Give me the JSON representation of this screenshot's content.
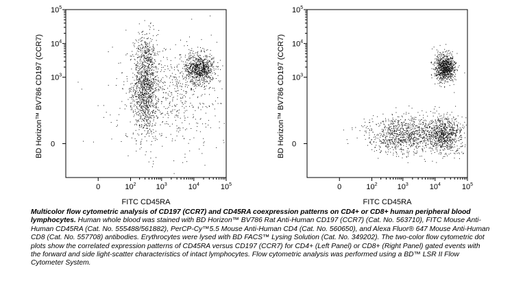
{
  "chart_data": [
    {
      "type": "scatter",
      "panel": "left",
      "title": "",
      "xlabel": "FITC CD45RA",
      "ylabel": "BD Horizon™ BV786 CD197 (CCR7)",
      "x_scale": "biexponential (log-like)",
      "y_scale": "biexponential (log-like)",
      "xlim": [
        -100,
        100000
      ],
      "ylim": [
        -100,
        100000
      ],
      "x_ticks": [
        {
          "value": 0,
          "label": "0"
        },
        {
          "value": 100,
          "label": "10",
          "exp": "2"
        },
        {
          "value": 1000,
          "label": "10",
          "exp": "3"
        },
        {
          "value": 10000,
          "label": "10",
          "exp": "4"
        },
        {
          "value": 100000,
          "label": "10",
          "exp": "5"
        }
      ],
      "y_ticks": [
        {
          "value": 0,
          "label": "0"
        },
        {
          "value": 1000,
          "label": "10",
          "exp": "3"
        },
        {
          "value": 10000,
          "label": "10",
          "exp": "4"
        },
        {
          "value": 100000,
          "label": "10",
          "exp": "5"
        }
      ],
      "populations": [
        {
          "description": "CD45RA low, CCR7 spread",
          "cx": 300,
          "cy": 600,
          "weight": 0.45
        },
        {
          "description": "CD45RA high, CCR7 high",
          "cx": 15000,
          "cy": 1800,
          "weight": 0.3
        },
        {
          "description": "scattered background",
          "cx": 2000,
          "cy": 300,
          "weight": 0.25
        }
      ],
      "grid": false,
      "legend": "none"
    },
    {
      "type": "scatter",
      "panel": "right",
      "title": "",
      "xlabel": "FITC CD45RA",
      "ylabel": "BD Horizon™ BV786 CD197 (CCR7)",
      "x_scale": "biexponential (log-like)",
      "y_scale": "biexponential (log-like)",
      "xlim": [
        -100,
        100000
      ],
      "ylim": [
        -100,
        100000
      ],
      "x_ticks": [
        {
          "value": 0,
          "label": "0"
        },
        {
          "value": 100,
          "label": "10",
          "exp": "2"
        },
        {
          "value": 1000,
          "label": "10",
          "exp": "3"
        },
        {
          "value": 10000,
          "label": "10",
          "exp": "4"
        },
        {
          "value": 100000,
          "label": "10",
          "exp": "5"
        }
      ],
      "y_ticks": [
        {
          "value": 0,
          "label": "0"
        },
        {
          "value": 1000,
          "label": "10",
          "exp": "3"
        },
        {
          "value": 10000,
          "label": "10",
          "exp": "4"
        },
        {
          "value": 100000,
          "label": "10",
          "exp": "5"
        }
      ],
      "populations": [
        {
          "description": "CD45RA high, CCR7 high",
          "cx": 20000,
          "cy": 2000,
          "weight": 0.35
        },
        {
          "description": "CD45RA high, CCR7 negative",
          "cx": 20000,
          "cy": 10,
          "weight": 0.3
        },
        {
          "description": "CD45RA low-mid, CCR7 negative",
          "cx": 1000,
          "cy": 10,
          "weight": 0.35
        }
      ],
      "grid": false,
      "legend": "none"
    }
  ],
  "caption": {
    "bold": "Multicolor flow cytometric analysis of CD197 (CCR7) and CD45RA coexpression patterns on CD4+ or CD8+ human peripheral blood lymphocytes.",
    "text": " Human whole blood was stained with BD Horizon™ BV786 Rat Anti-Human CD197 (CCR7) (Cat. No. 563710), FITC Mouse Anti-Human CD45RA (Cat. No. 555488/561882), PerCP-Cy™5.5 Mouse Anti-Human CD4 (Cat. No. 560650), and Alexa Fluor® 647 Mouse Anti-Human CD8 (Cat. No. 557708) antibodies. Erythrocytes were lysed with BD FACS™ Lysing Solution (Cat. No. 349202). The two-color flow cytometric dot plots show the correlated expression patterns of CD45RA versus CD197 (CCR7) for CD4+ (Left Panel) or CD8+ (Right Panel) gated events with the forward and side light-scatter characteristics of intact lymphocytes. Flow cytometric analysis was performed using a BD™ LSR II Flow Cytometer System."
  }
}
